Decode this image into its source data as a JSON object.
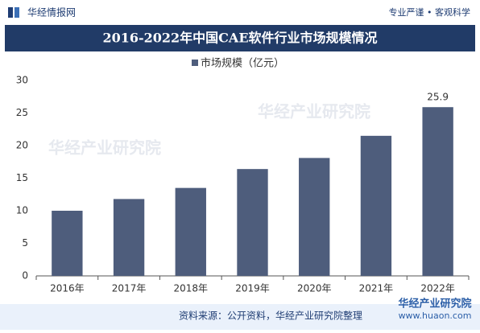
{
  "brand": "华经情报网",
  "slogan": "专业严谨 • 客观科学",
  "watermark": "华经产业研究院",
  "footer_logo": {
    "name": "华经产业研究院",
    "url": "www.huaon.com"
  },
  "chart_data": {
    "type": "bar",
    "title": "2016-2022年中国CAE软件行业市场规模情况",
    "categories": [
      "2016年",
      "2017年",
      "2018年",
      "2019年",
      "2020年",
      "2021年",
      "2022年"
    ],
    "series": [
      {
        "name": "市场规模（亿元）",
        "color": "#4e5d7c",
        "values": [
          10,
          11.8,
          13.5,
          16.4,
          18.1,
          21.5,
          25.9
        ],
        "value_labels": [
          null,
          null,
          null,
          null,
          null,
          null,
          "25.9"
        ]
      }
    ],
    "ylim": [
      0,
      30
    ],
    "yticks": [
      0,
      5,
      10,
      15,
      20,
      25,
      30
    ],
    "grid": false,
    "legend": "top",
    "source": "资料来源：公开资料，华经产业研究院整理"
  }
}
